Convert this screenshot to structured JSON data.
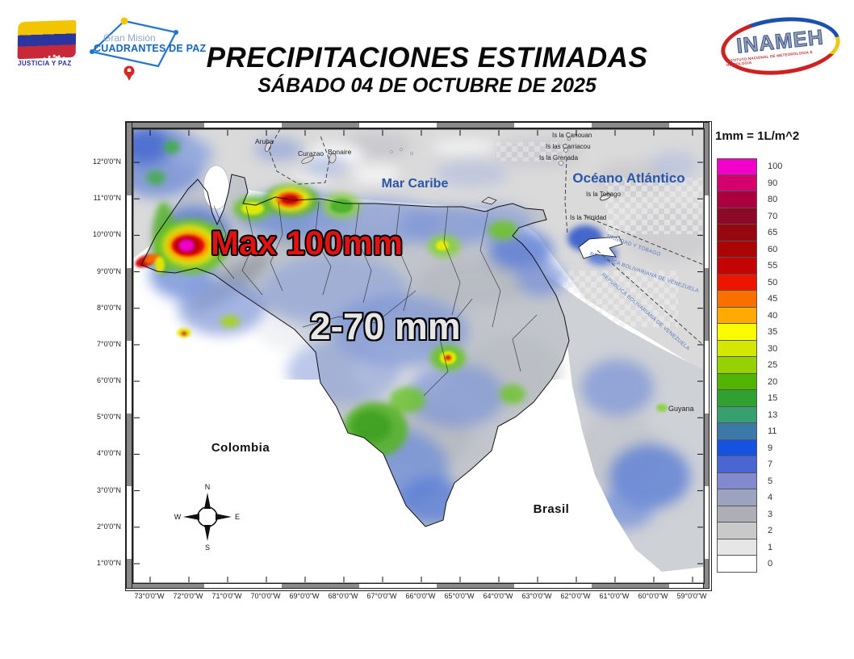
{
  "header": {
    "title": "PRECIPITACIONES ESTIMADAS",
    "subtitle": "SÁBADO 04 DE OCTUBRE DE 2025",
    "flag_caption": "JUSTICIA Y PAZ",
    "mission_line1": "Gran Misión",
    "mission_line2": "CUADRANTES DE PAZ",
    "inameh_name": "INAMEH",
    "inameh_sub": "INSTITUTO NACIONAL DE METEOROLOGIA E HIDROLOGIA"
  },
  "legend": {
    "unit_note": "1mm = 1L/m^2",
    "entries": [
      {
        "value": "100",
        "color": "#F000C8"
      },
      {
        "value": "90",
        "color": "#D4006E"
      },
      {
        "value": "80",
        "color": "#AA0040"
      },
      {
        "value": "70",
        "color": "#8C0A28"
      },
      {
        "value": "65",
        "color": "#960810"
      },
      {
        "value": "60",
        "color": "#AA0404"
      },
      {
        "value": "55",
        "color": "#C40404"
      },
      {
        "value": "50",
        "color": "#EE1500"
      },
      {
        "value": "45",
        "color": "#FA7000"
      },
      {
        "value": "40",
        "color": "#FFAA00"
      },
      {
        "value": "35",
        "color": "#FAFA00"
      },
      {
        "value": "30",
        "color": "#D2E800"
      },
      {
        "value": "25",
        "color": "#96D200"
      },
      {
        "value": "20",
        "color": "#50B400"
      },
      {
        "value": "15",
        "color": "#30A030"
      },
      {
        "value": "13",
        "color": "#38A070"
      },
      {
        "value": "11",
        "color": "#3C78A8"
      },
      {
        "value": "9",
        "color": "#1552E0"
      },
      {
        "value": "7",
        "color": "#4A66D2"
      },
      {
        "value": "5",
        "color": "#8389CE"
      },
      {
        "value": "4",
        "color": "#9CA3BE"
      },
      {
        "value": "3",
        "color": "#AEAEB6"
      },
      {
        "value": "2",
        "color": "#C9C9C9"
      },
      {
        "value": "1",
        "color": "#E6E6E6"
      },
      {
        "value": "0",
        "color": "#FFFFFF"
      }
    ]
  },
  "map": {
    "lat_ticks": [
      "12°0'0\"N",
      "11°0'0\"N",
      "10°0'0\"N",
      "9°0'0\"N",
      "8°0'0\"N",
      "7°0'0\"N",
      "6°0'0\"N",
      "5°0'0\"N",
      "4°0'0\"N",
      "3°0'0\"N",
      "2°0'0\"N",
      "1°0'0\"N"
    ],
    "lon_ticks": [
      "73°0'0\"W",
      "72°0'0\"W",
      "71°0'0\"W",
      "70°0'0\"W",
      "69°0'0\"W",
      "68°0'0\"W",
      "67°0'0\"W",
      "66°0'0\"W",
      "65°0'0\"W",
      "64°0'0\"W",
      "63°0'0\"W",
      "62°0'0\"W",
      "61°0'0\"W",
      "60°0'0\"W",
      "59°0'0\"W"
    ],
    "labels": {
      "mar_caribe": "Mar Caribe",
      "oceano_atlantico": "Océano Atlántico",
      "colombia": "Colombia",
      "brasil": "Brasil",
      "guyana": "Guyana",
      "aruba": "Aruba",
      "curazao": "Curazao",
      "bonaire": "Bonaire",
      "isla_canouan": "Is la Canouan",
      "islas_carriacou": "Is las Carriacou",
      "isla_grenada": "Is la Grenada",
      "isla_tobago": "Is la Tobago",
      "isla_trinidad": "Is la Trinidad",
      "trinidad_tobago_boundary": "TRINIDAD Y TOBAGO",
      "venezuela_boundary1": "REPUBLICA BOLIVARIANA DE VENEZUELA",
      "venezuela_boundary2": "REPUBLICA BOLIVARIANA DE VENEZUELA"
    },
    "annotations": {
      "max_label": "Max 100mm",
      "range_label": "2-70 mm"
    },
    "compass": {
      "n": "N",
      "e": "E",
      "s": "S",
      "w": "W"
    }
  }
}
